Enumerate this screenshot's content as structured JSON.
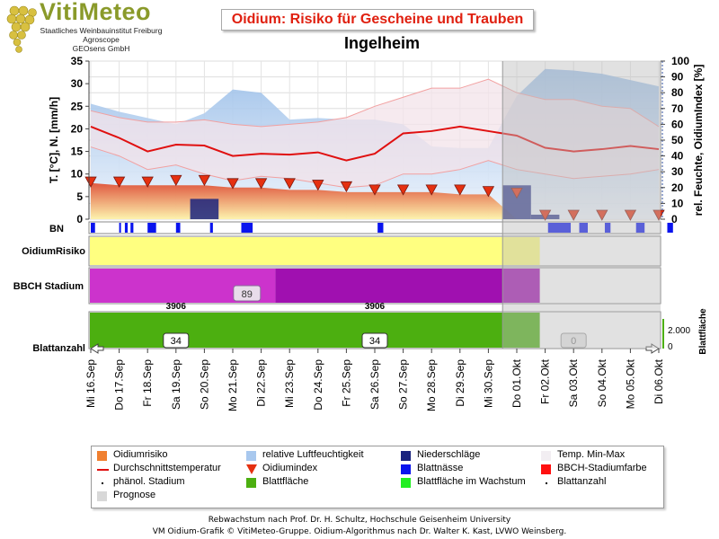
{
  "logo": {
    "wordmark": "VitiMeteo",
    "lines": [
      "Staatliches Weinbauinstitut Freiburg",
      "Agroscope",
      "GEOsens GmbH"
    ]
  },
  "header": {
    "title": "Oidium: Risiko für Gescheine und Trauben",
    "location": "Ingelheim"
  },
  "footer": {
    "line1": "Rebwachstum nach Prof. Dr. H. Schultz, Hochschule Geisenheim University",
    "line2": "VM Oidium-Grafik © VitiMeteo-Gruppe. Oidium-Algorithmus nach Dr. Walter K. Kast, LVWO Weinsberg."
  },
  "legend": [
    {
      "label": "Oidiumrisiko",
      "symbol": "square",
      "color": "#f08030"
    },
    {
      "label": "relative Luftfeuchtigkeit",
      "symbol": "square",
      "color": "#a8c8ee"
    },
    {
      "label": "Niederschläge",
      "symbol": "square",
      "color": "#1a237e"
    },
    {
      "label": "Temp. Min-Max",
      "symbol": "square",
      "color": "#f2eef2"
    },
    {
      "label": "Durchschnittstemperatur",
      "symbol": "line",
      "color": "#e01010"
    },
    {
      "label": "Oidiumindex",
      "symbol": "triangle",
      "color": "#e53010"
    },
    {
      "label": "Blattnässe",
      "symbol": "square",
      "color": "#0a14ee"
    },
    {
      "label": "BBCH-Stadiumfarbe",
      "symbol": "square",
      "color": "#ff1010"
    },
    {
      "label": "phänol. Stadium",
      "symbol": "dot",
      "color": "#000000"
    },
    {
      "label": "Blattfläche",
      "symbol": "square",
      "color": "#4caf10"
    },
    {
      "label": "Blattfläche im Wachstum",
      "symbol": "square",
      "color": "#22ee22"
    },
    {
      "label": "Blattanzahl",
      "symbol": "dot",
      "color": "#000000"
    },
    {
      "label": "Prognose",
      "symbol": "square",
      "color": "#d8d8d8"
    }
  ],
  "chart_data": {
    "type": "line",
    "dates": [
      "Mi 16.Sep",
      "Do 17.Sep",
      "Fr 18.Sep",
      "Sa 19.Sep",
      "So 20.Sep",
      "Mo 21.Sep",
      "Di 22.Sep",
      "Mi 23.Sep",
      "Do 24.Sep",
      "Fr 25.Sep",
      "Sa 26.Sep",
      "So 27.Sep",
      "Mo 28.Sep",
      "Di 29.Sep",
      "Mi 30.Sep",
      "Do 01.Okt",
      "Fr 02.Okt",
      "Sa 03.Okt",
      "So 04.Okt",
      "Mo 05.Okt",
      "Di 06.Okt"
    ],
    "forecast_start_index": 14.5,
    "left_axis": {
      "label": "T. [°C], N. [mm/h]",
      "min": 0,
      "max": 35,
      "ticks": [
        0,
        5,
        10,
        15,
        20,
        25,
        30,
        35
      ]
    },
    "right_axis": {
      "label": "rel. Feuchte, OidiumIndex [%]",
      "min": 0,
      "max": 100,
      "ticks": [
        0,
        10,
        20,
        30,
        40,
        50,
        60,
        70,
        80,
        90,
        100
      ]
    },
    "avg_temperature": [
      20.5,
      18,
      15,
      16.5,
      16.3,
      14,
      14.5,
      14.3,
      14.8,
      13,
      14.5,
      19,
      19.5,
      20.5,
      19.5,
      18.5,
      15.8,
      15,
      15.5,
      16.2,
      15.5
    ],
    "temp_max": [
      24,
      22.5,
      21.5,
      21.5,
      22,
      21,
      20.5,
      21,
      21.5,
      22.5,
      25,
      27,
      29,
      29,
      31,
      28,
      26.5,
      26.5,
      25,
      24.5,
      20.5
    ],
    "temp_min": [
      16,
      14,
      11,
      12,
      10,
      8.5,
      9.5,
      9,
      8,
      7,
      7.5,
      10,
      10,
      11,
      13,
      11,
      10,
      9,
      9.5,
      10,
      11
    ],
    "humidity": [
      73,
      68,
      64,
      60,
      67,
      82,
      80,
      63,
      64,
      63,
      63,
      60,
      46,
      45,
      45,
      78,
      95,
      94,
      92,
      88,
      84
    ],
    "precipitation": [
      0,
      0,
      0,
      0,
      4.5,
      0,
      0,
      0,
      0,
      0,
      0,
      0,
      0,
      0,
      0,
      7.5,
      1,
      0,
      0,
      0,
      0
    ],
    "oidium_risk": [
      8,
      7.5,
      7.5,
      7.5,
      7.5,
      7,
      7,
      6.5,
      6.5,
      6,
      6,
      6,
      6,
      5.5,
      5.5,
      0,
      0,
      0,
      0,
      0,
      0
    ],
    "oidium_index": [
      21,
      21,
      21,
      22,
      22,
      20,
      20,
      20,
      19,
      18,
      16,
      16,
      16,
      16,
      15,
      14,
      0,
      0,
      0,
      0,
      0
    ],
    "leaf_wetness_row_label": "BN",
    "leaf_wetness_hours": [
      [
        0,
        0.15
      ],
      [
        1,
        0.3
      ],
      [
        1.2,
        1.3
      ],
      [
        1.4,
        1.5
      ],
      [
        2,
        2.3
      ],
      [
        3,
        3.15
      ],
      [
        4.2,
        4.3
      ],
      [
        5.3,
        5.7
      ],
      [
        10.1,
        10.3
      ],
      [
        16.1,
        16.9
      ],
      [
        17.2,
        17.5
      ],
      [
        18.1,
        18.3
      ],
      [
        19.2,
        19.5
      ],
      [
        20.3,
        20.5
      ]
    ],
    "risk_row": {
      "label": "OidiumRisiko",
      "color": "#ffff80"
    },
    "bbch_row": {
      "label": "BBCH Stadium",
      "colors": [
        "#cc33cc",
        "#a010b0"
      ],
      "switch_index": 6.5,
      "stage_label": "89",
      "stage_label_index": 5.5
    },
    "leaf_row": {
      "label": "Blattanzahl",
      "right_label": "Blattfläche",
      "right_ticks": [
        "0",
        "2.000"
      ],
      "leaf_area_value": "3906",
      "leaf_area_positions": [
        3,
        10
      ],
      "leaf_counts": [
        {
          "value": "34",
          "index": 3
        },
        {
          "value": "34",
          "index": 10
        },
        {
          "value": "0",
          "index": 17
        }
      ]
    }
  }
}
